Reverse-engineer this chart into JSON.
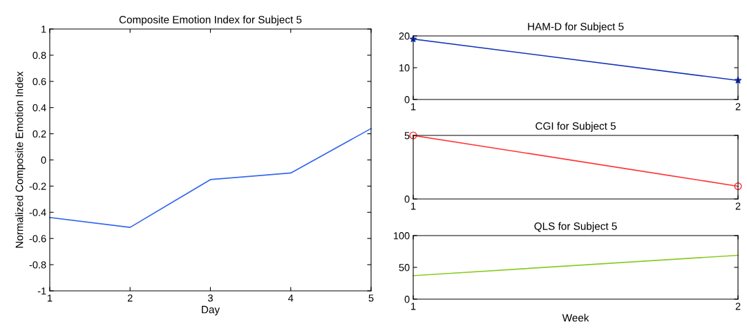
{
  "chart_data": [
    {
      "type": "line",
      "title": "Composite Emotion Index for Subject 5",
      "xlabel": "Day",
      "ylabel": "Normalized Composite Emotion Index",
      "x": [
        1,
        2,
        3,
        4,
        5
      ],
      "series": [
        {
          "color": "#3366ee",
          "values": [
            -0.44,
            -0.515,
            -0.15,
            -0.1,
            0.24
          ]
        }
      ],
      "xlim": [
        1,
        5
      ],
      "xticks": [
        1,
        2,
        3,
        4,
        5
      ],
      "ylim": [
        -1,
        1
      ],
      "yticks": [
        -1,
        -0.8,
        -0.6,
        -0.4,
        -0.2,
        0,
        0.2,
        0.4,
        0.6,
        0.8,
        1
      ],
      "grid": false
    },
    {
      "type": "line",
      "title": "HAM-D for Subject 5",
      "x": [
        1,
        2
      ],
      "marker": "star",
      "series": [
        {
          "color": "#1133bb",
          "values": [
            19,
            6
          ]
        }
      ],
      "xlim": [
        1,
        2
      ],
      "xticks": [
        1,
        2
      ],
      "ylim": [
        0,
        20
      ],
      "yticks": [
        0,
        10,
        20
      ],
      "grid": false
    },
    {
      "type": "line",
      "title": "CGI for Subject 5",
      "x": [
        1,
        2
      ],
      "marker": "circle",
      "series": [
        {
          "color": "#ff3333",
          "values": [
            5,
            1
          ]
        }
      ],
      "xlim": [
        1,
        2
      ],
      "xticks": [
        1,
        2
      ],
      "ylim": [
        0,
        5
      ],
      "yticks": [
        0,
        5
      ],
      "grid": false
    },
    {
      "type": "line",
      "title": "QLS for Subject 5",
      "xlabel": "Week",
      "x": [
        1,
        2
      ],
      "series": [
        {
          "color": "#88cc22",
          "values": [
            37,
            69
          ]
        }
      ],
      "xlim": [
        1,
        2
      ],
      "xticks": [
        1,
        2
      ],
      "ylim": [
        0,
        100
      ],
      "yticks": [
        0,
        50,
        100
      ],
      "grid": false
    }
  ]
}
